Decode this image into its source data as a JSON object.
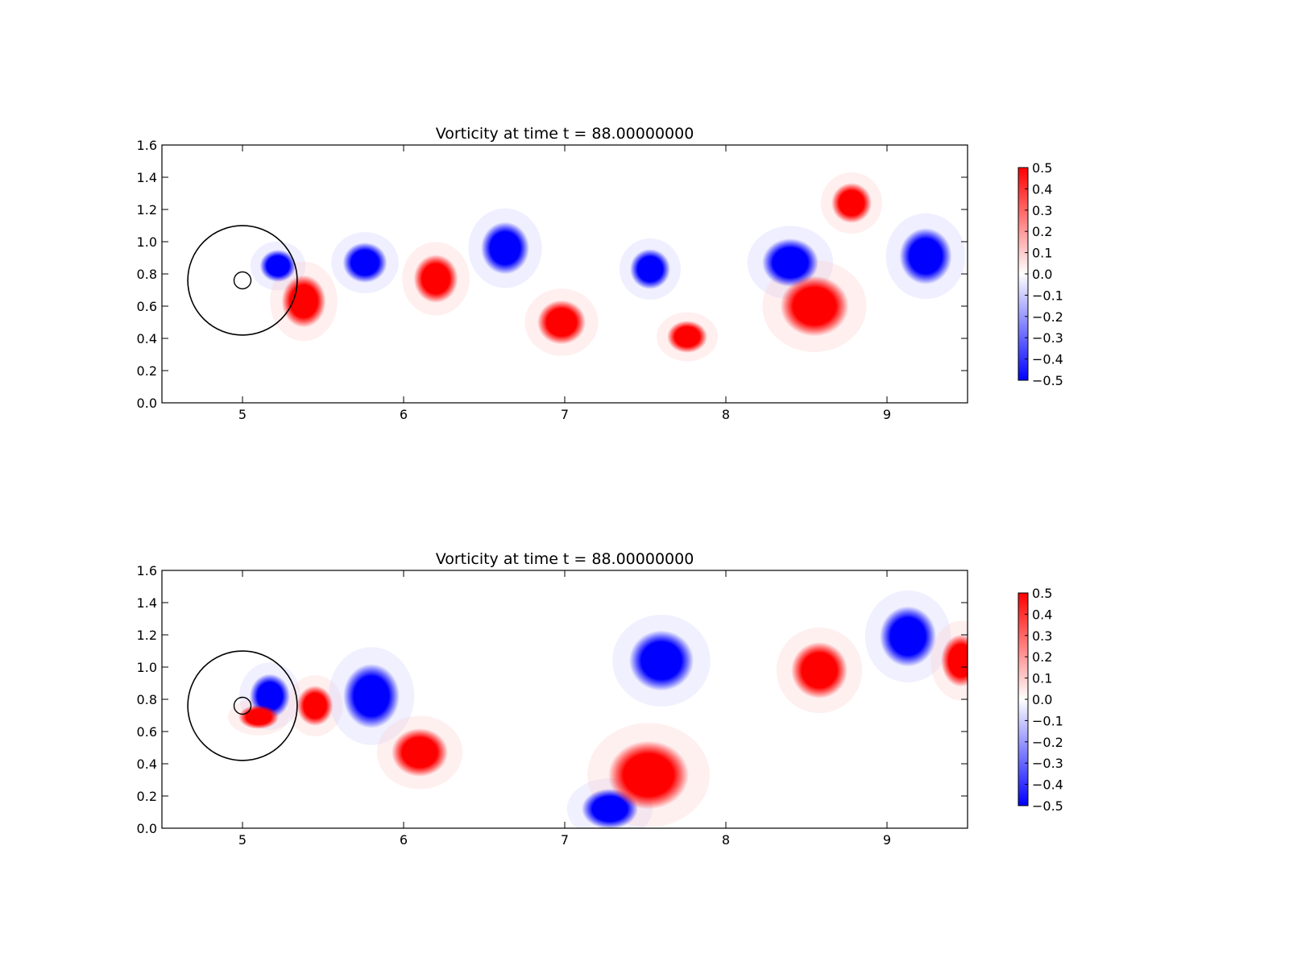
{
  "chart_data": [
    {
      "type": "heatmap",
      "title": "Vorticity at time t =    88.00000000",
      "xlabel": "",
      "ylabel": "",
      "xlim": [
        4.5,
        9.5
      ],
      "ylim": [
        0.0,
        1.6
      ],
      "x_ticks": [
        "5",
        "6",
        "7",
        "8",
        "9"
      ],
      "y_ticks": [
        "0.0",
        "0.2",
        "0.4",
        "0.6",
        "0.8",
        "1.0",
        "1.2",
        "1.4",
        "1.6"
      ],
      "colormap": "bwr",
      "colors": {
        "positive": "#ff0000",
        "zero": "#ffffff",
        "negative": "#0000ff"
      },
      "colorbar": {
        "range": [
          -0.5,
          0.5
        ],
        "ticks": [
          "0.5",
          "0.4",
          "0.3",
          "0.2",
          "0.1",
          "0.0",
          "−0.1",
          "−0.2",
          "−0.3",
          "−0.4",
          "−0.5"
        ]
      },
      "grid": false,
      "body": {
        "center": [
          5.0,
          0.76
        ],
        "outer_radius": 0.35,
        "inner_radius": 0.05
      },
      "vortices": [
        {
          "x": 5.22,
          "y": 0.85,
          "rx": 0.09,
          "ry": 0.08,
          "sign": -1,
          "strength": 1.0
        },
        {
          "x": 5.38,
          "y": 0.63,
          "rx": 0.11,
          "ry": 0.13,
          "sign": 1,
          "strength": 1.0
        },
        {
          "x": 5.76,
          "y": 0.87,
          "rx": 0.11,
          "ry": 0.1,
          "sign": -1,
          "strength": 1.0
        },
        {
          "x": 6.2,
          "y": 0.77,
          "rx": 0.11,
          "ry": 0.12,
          "sign": 1,
          "strength": 1.0
        },
        {
          "x": 6.63,
          "y": 0.96,
          "rx": 0.12,
          "ry": 0.13,
          "sign": -1,
          "strength": 1.0
        },
        {
          "x": 6.98,
          "y": 0.5,
          "rx": 0.12,
          "ry": 0.11,
          "sign": 1,
          "strength": 1.0
        },
        {
          "x": 7.53,
          "y": 0.83,
          "rx": 0.1,
          "ry": 0.1,
          "sign": -1,
          "strength": 1.0
        },
        {
          "x": 7.76,
          "y": 0.41,
          "rx": 0.1,
          "ry": 0.08,
          "sign": 1,
          "strength": 1.0
        },
        {
          "x": 8.4,
          "y": 0.87,
          "rx": 0.14,
          "ry": 0.12,
          "sign": -1,
          "strength": 1.0
        },
        {
          "x": 8.55,
          "y": 0.6,
          "rx": 0.17,
          "ry": 0.15,
          "sign": 1,
          "strength": 1.0
        },
        {
          "x": 8.78,
          "y": 1.24,
          "rx": 0.1,
          "ry": 0.1,
          "sign": 1,
          "strength": 1.0
        },
        {
          "x": 9.24,
          "y": 0.91,
          "rx": 0.13,
          "ry": 0.14,
          "sign": -1,
          "strength": 1.0
        }
      ]
    },
    {
      "type": "heatmap",
      "title": "Vorticity at time t =    88.00000000",
      "xlabel": "",
      "ylabel": "",
      "xlim": [
        4.5,
        9.5
      ],
      "ylim": [
        0.0,
        1.6
      ],
      "x_ticks": [
        "5",
        "6",
        "7",
        "8",
        "9"
      ],
      "y_ticks": [
        "0.0",
        "0.2",
        "0.4",
        "0.6",
        "0.8",
        "1.0",
        "1.2",
        "1.4",
        "1.6"
      ],
      "colormap": "bwr",
      "colors": {
        "positive": "#ff0000",
        "zero": "#ffffff",
        "negative": "#0000ff"
      },
      "colorbar": {
        "range": [
          -0.5,
          0.5
        ],
        "ticks": [
          "0.5",
          "0.4",
          "0.3",
          "0.2",
          "0.1",
          "0.0",
          "−0.1",
          "−0.2",
          "−0.3",
          "−0.4",
          "−0.5"
        ]
      },
      "grid": false,
      "body": {
        "center": [
          5.0,
          0.76
        ],
        "outer_radius": 0.35,
        "inner_radius": 0.05
      },
      "vortices": [
        {
          "x": 5.17,
          "y": 0.82,
          "rx": 0.1,
          "ry": 0.11,
          "sign": -1,
          "strength": 1.0
        },
        {
          "x": 5.1,
          "y": 0.69,
          "rx": 0.1,
          "ry": 0.06,
          "sign": 1,
          "strength": 1.0
        },
        {
          "x": 5.45,
          "y": 0.76,
          "rx": 0.09,
          "ry": 0.1,
          "sign": 1,
          "strength": 1.0
        },
        {
          "x": 5.8,
          "y": 0.82,
          "rx": 0.14,
          "ry": 0.16,
          "sign": -1,
          "strength": 1.0
        },
        {
          "x": 6.1,
          "y": 0.47,
          "rx": 0.14,
          "ry": 0.12,
          "sign": 1,
          "strength": 1.0
        },
        {
          "x": 7.28,
          "y": 0.12,
          "rx": 0.14,
          "ry": 0.1,
          "sign": -1,
          "strength": 1.0
        },
        {
          "x": 7.52,
          "y": 0.33,
          "rx": 0.2,
          "ry": 0.17,
          "sign": 1,
          "strength": 1.0
        },
        {
          "x": 7.6,
          "y": 1.04,
          "rx": 0.16,
          "ry": 0.15,
          "sign": -1,
          "strength": 1.0
        },
        {
          "x": 8.58,
          "y": 0.98,
          "rx": 0.14,
          "ry": 0.14,
          "sign": 1,
          "strength": 1.0
        },
        {
          "x": 9.13,
          "y": 1.19,
          "rx": 0.14,
          "ry": 0.15,
          "sign": -1,
          "strength": 1.0
        },
        {
          "x": 9.46,
          "y": 1.04,
          "rx": 0.1,
          "ry": 0.13,
          "sign": 1,
          "strength": 1.0
        }
      ]
    }
  ]
}
